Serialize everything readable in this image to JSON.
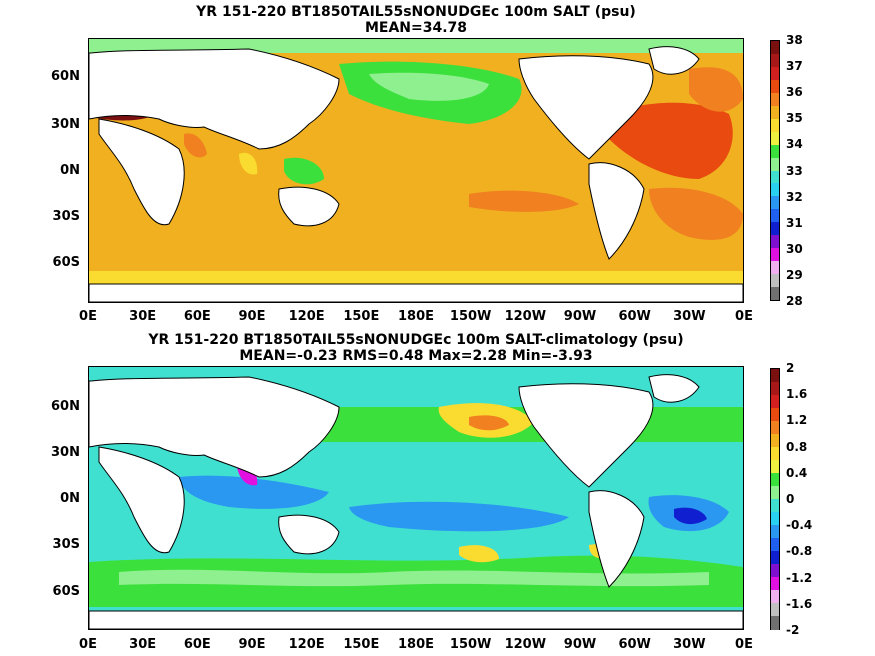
{
  "panels": [
    {
      "title": "YR 151-220 BT1850TAIL55sNONUDGEc 100m SALT (psu)",
      "subtitle": "MEAN=34.78",
      "colorbar": {
        "labels": [
          "38",
          "37",
          "36",
          "35",
          "34",
          "33",
          "32",
          "31",
          "30",
          "29",
          "28"
        ],
        "colors": [
          "#7a1010",
          "#a81818",
          "#d22020",
          "#e84a10",
          "#f08020",
          "#f0b020",
          "#fadb30",
          "#f0f040",
          "#3ce03c",
          "#8ef08e",
          "#40e0d0",
          "#2ad0f0",
          "#2a98f0",
          "#2060f0",
          "#1020d0",
          "#8010d0",
          "#e010e0",
          "#f0b0f0",
          "#c0c0c0",
          "#707070"
        ]
      }
    },
    {
      "title": "YR 151-220 BT1850TAIL55sNONUDGEc 100m SALT-climatology (psu)",
      "subtitle": "MEAN=-0.23   RMS=0.48   Max=2.28   Min=-3.93",
      "colorbar": {
        "labels": [
          "2",
          "1.6",
          "1.2",
          "0.8",
          "0.4",
          "0",
          "-0.4",
          "-0.8",
          "-1.2",
          "-1.6",
          "-2"
        ],
        "colors": [
          "#7a1010",
          "#a81818",
          "#d22020",
          "#e84a10",
          "#f08020",
          "#f0b020",
          "#fadb30",
          "#f0f040",
          "#3ce03c",
          "#8ef08e",
          "#40e0d0",
          "#2ad0f0",
          "#2a98f0",
          "#2060f0",
          "#1020d0",
          "#8010d0",
          "#e010e0",
          "#f0b0f0",
          "#c0c0c0",
          "#707070"
        ]
      }
    }
  ],
  "lat_labels": [
    "60N",
    "30N",
    "0N",
    "30S",
    "60S"
  ],
  "lon_labels": [
    "0E",
    "30E",
    "60E",
    "90E",
    "120E",
    "150E",
    "180E",
    "150W",
    "120W",
    "90W",
    "60W",
    "30W",
    "0E"
  ],
  "ocean_colors": {
    "top": "#f0b020",
    "bottom": "#40e0d0",
    "land": "#ffffff"
  }
}
